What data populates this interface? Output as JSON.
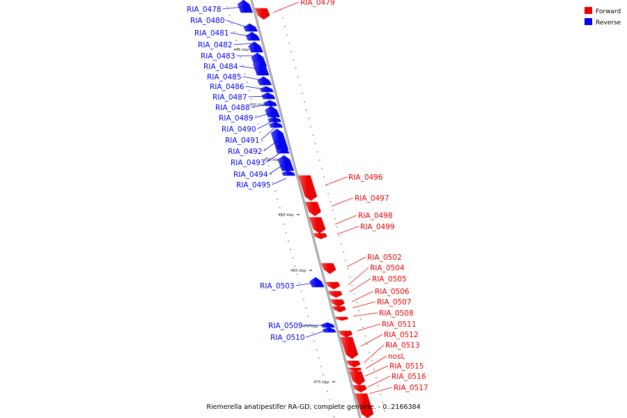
{
  "title": "Riemerella anatipestifer RA-GD, complete genome. - 0..2166384",
  "colors": {
    "forward": "#ee0000",
    "reverse": "#0000ee",
    "backbone": "#888888"
  },
  "legend": [
    {
      "label": "Forward",
      "color": "#ee0000"
    },
    {
      "label": "Reverse",
      "color": "#0000ee"
    }
  ],
  "scale_marks": [
    "445 kbp",
    "450 kbp",
    "455 kbp",
    "460 kbp",
    "465 kbp",
    "470 kbp",
    "475 kbp"
  ],
  "genes": [
    {
      "name": "RIA_0478",
      "strand": "reverse"
    },
    {
      "name": "RIA_0479",
      "strand": "forward"
    },
    {
      "name": "RIA_0480",
      "strand": "reverse"
    },
    {
      "name": "RIA_0481",
      "strand": "reverse"
    },
    {
      "name": "RIA_0482",
      "strand": "reverse"
    },
    {
      "name": "RIA_0483",
      "strand": "reverse"
    },
    {
      "name": "RIA_0484",
      "strand": "reverse"
    },
    {
      "name": "RIA_0485",
      "strand": "reverse"
    },
    {
      "name": "RIA_0486",
      "strand": "reverse"
    },
    {
      "name": "RIA_0487",
      "strand": "reverse"
    },
    {
      "name": "RIA_0488",
      "strand": "reverse"
    },
    {
      "name": "RIA_0489",
      "strand": "reverse"
    },
    {
      "name": "RIA_0490",
      "strand": "reverse"
    },
    {
      "name": "RIA_0491",
      "strand": "reverse"
    },
    {
      "name": "RIA_0492",
      "strand": "reverse"
    },
    {
      "name": "RIA_0493",
      "strand": "reverse"
    },
    {
      "name": "RIA_0494",
      "strand": "reverse"
    },
    {
      "name": "RIA_0495",
      "strand": "reverse"
    },
    {
      "name": "RIA_0496",
      "strand": "forward"
    },
    {
      "name": "RIA_0497",
      "strand": "forward"
    },
    {
      "name": "RIA_0498",
      "strand": "forward"
    },
    {
      "name": "RIA_0499",
      "strand": "forward"
    },
    {
      "name": "RIA_0502",
      "strand": "forward"
    },
    {
      "name": "RIA_0503",
      "strand": "reverse"
    },
    {
      "name": "RIA_0504",
      "strand": "forward"
    },
    {
      "name": "RIA_0505",
      "strand": "forward"
    },
    {
      "name": "RIA_0506",
      "strand": "forward"
    },
    {
      "name": "RIA_0507",
      "strand": "forward"
    },
    {
      "name": "RIA_0508",
      "strand": "forward"
    },
    {
      "name": "RIA_0509",
      "strand": "reverse"
    },
    {
      "name": "RIA_0510",
      "strand": "reverse"
    },
    {
      "name": "RIA_0511",
      "strand": "forward"
    },
    {
      "name": "RIA_0512",
      "strand": "forward"
    },
    {
      "name": "RIA_0513",
      "strand": "forward"
    },
    {
      "name": "nosL",
      "strand": "forward"
    },
    {
      "name": "RIA_0515",
      "strand": "forward"
    },
    {
      "name": "RIA_0516",
      "strand": "forward"
    },
    {
      "name": "RIA_0517",
      "strand": "forward"
    }
  ]
}
